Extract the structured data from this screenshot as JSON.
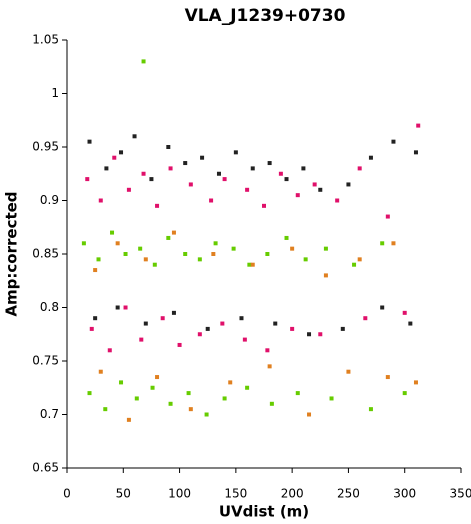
{
  "chart_data": {
    "type": "scatter",
    "title": "VLA_J1239+0730",
    "xlabel": "UVdist (m)",
    "ylabel": "Amp:corrected",
    "xlim": [
      0,
      350
    ],
    "xticks": [
      0,
      50,
      100,
      150,
      200,
      250,
      300,
      350
    ],
    "ylim": [
      0.65,
      1.05
    ],
    "yticks": [
      0.65,
      0.7,
      0.75,
      0.8,
      0.85,
      0.9,
      0.95,
      1,
      1.05
    ],
    "series": [
      {
        "color": "#222222",
        "x": [
          20,
          35,
          48,
          60,
          75,
          90,
          105,
          120,
          135,
          150,
          165,
          180,
          195,
          210,
          225,
          250,
          270,
          290,
          310,
          25,
          45,
          70,
          95,
          125,
          155,
          185,
          215,
          245,
          280,
          305
        ],
        "values": [
          0.955,
          0.93,
          0.945,
          0.96,
          0.92,
          0.95,
          0.935,
          0.94,
          0.925,
          0.945,
          0.93,
          0.935,
          0.92,
          0.93,
          0.91,
          0.915,
          0.94,
          0.955,
          0.945,
          0.79,
          0.8,
          0.785,
          0.795,
          0.78,
          0.79,
          0.785,
          0.775,
          0.78,
          0.8,
          0.785
        ]
      },
      {
        "color": "#e0106a",
        "x": [
          18,
          30,
          42,
          55,
          68,
          80,
          92,
          110,
          128,
          140,
          160,
          175,
          190,
          205,
          220,
          240,
          260,
          285,
          312,
          22,
          38,
          52,
          66,
          85,
          100,
          118,
          138,
          158,
          178,
          200,
          225,
          265,
          300
        ],
        "values": [
          0.92,
          0.9,
          0.94,
          0.91,
          0.925,
          0.895,
          0.93,
          0.915,
          0.9,
          0.92,
          0.91,
          0.895,
          0.925,
          0.905,
          0.915,
          0.9,
          0.93,
          0.885,
          0.97,
          0.78,
          0.76,
          0.8,
          0.77,
          0.79,
          0.765,
          0.775,
          0.785,
          0.77,
          0.76,
          0.78,
          0.775,
          0.79,
          0.795
        ]
      },
      {
        "color": "#66cc00",
        "x": [
          15,
          28,
          40,
          52,
          65,
          68,
          78,
          90,
          105,
          118,
          132,
          148,
          162,
          178,
          195,
          212,
          230,
          255,
          280,
          20,
          34,
          48,
          62,
          76,
          92,
          108,
          124,
          140,
          160,
          182,
          205,
          235,
          270,
          300
        ],
        "values": [
          0.86,
          0.845,
          0.87,
          0.85,
          0.855,
          1.03,
          0.84,
          0.865,
          0.85,
          0.845,
          0.86,
          0.855,
          0.84,
          0.85,
          0.865,
          0.845,
          0.855,
          0.84,
          0.86,
          0.72,
          0.705,
          0.73,
          0.715,
          0.725,
          0.71,
          0.72,
          0.7,
          0.715,
          0.725,
          0.71,
          0.72,
          0.715,
          0.705,
          0.72
        ]
      },
      {
        "color": "#e08020",
        "x": [
          25,
          45,
          70,
          95,
          130,
          165,
          200,
          230,
          260,
          290,
          30,
          55,
          80,
          110,
          145,
          180,
          215,
          250,
          285,
          310
        ],
        "values": [
          0.835,
          0.86,
          0.845,
          0.87,
          0.85,
          0.84,
          0.855,
          0.83,
          0.845,
          0.86,
          0.74,
          0.695,
          0.735,
          0.705,
          0.73,
          0.745,
          0.7,
          0.74,
          0.735,
          0.73
        ]
      }
    ]
  }
}
